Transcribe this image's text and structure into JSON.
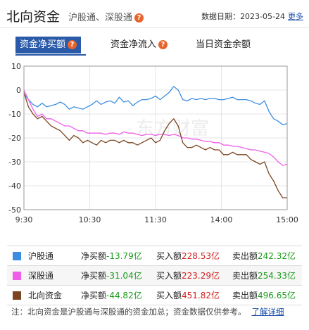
{
  "header": {
    "title": "北向资金",
    "subtitle": "沪股通、深股通",
    "date_label": "数据日期：",
    "date": "2023-05-24",
    "more": "更多"
  },
  "tabs": [
    {
      "label": "资金净买额",
      "active": true
    },
    {
      "label": "资金净流入",
      "active": false
    },
    {
      "label": "当日资金余额",
      "active": false
    }
  ],
  "chart_data": {
    "type": "line",
    "ylim": [
      -50,
      10
    ],
    "yticks": [
      "10",
      "0",
      "-10",
      "-20",
      "-30",
      "-40",
      "-50"
    ],
    "xticks": [
      "9:30",
      "10:30",
      "11:30",
      "14:00",
      "15:00"
    ],
    "grid": true,
    "series": [
      {
        "name": "沪股通",
        "color": "#3b8de0",
        "values": [
          -1.5,
          -4,
          -6,
          -7,
          -5.5,
          -7,
          -6.5,
          -6,
          -5,
          -6,
          -8,
          -7,
          -7.5,
          -8,
          -7,
          -6,
          -4.5,
          -6,
          -5,
          -4.5,
          -5.5,
          -3,
          -5,
          -4.5,
          -6.5,
          -5,
          -4,
          -4,
          -3.5,
          -2.5,
          -4,
          -2.5,
          -1,
          1.5,
          0,
          -4,
          -4.5,
          -3.5,
          -4,
          -3.5,
          -4,
          -3.5,
          -3.5,
          -4,
          -4,
          -3.5,
          -3,
          -4,
          -4,
          -4,
          -4.5,
          -5.5,
          -6,
          -4.5,
          -9,
          -12,
          -13,
          -14.5,
          -14
        ]
      },
      {
        "name": "深股通",
        "color": "#ee5ee8",
        "values": [
          0,
          -4,
          -8,
          -11,
          -10,
          -12,
          -12,
          -13,
          -14,
          -15,
          -15,
          -16,
          -17,
          -17,
          -18,
          -18,
          -18,
          -18,
          -18.5,
          -18,
          -18,
          -18.5,
          -17.5,
          -18,
          -18,
          -18.5,
          -19,
          -18.5,
          -18.5,
          -19,
          -18.5,
          -18.5,
          -19,
          -18.5,
          -19,
          -20,
          -20,
          -20.5,
          -20.5,
          -21,
          -21.5,
          -21.5,
          -22,
          -22,
          -23,
          -23,
          -23.5,
          -23.5,
          -24,
          -24.5,
          -25,
          -25,
          -25.5,
          -26,
          -26.5,
          -28,
          -30,
          -31.5,
          -31
        ]
      },
      {
        "name": "北向资金",
        "color": "#7a4520",
        "values": [
          -1,
          -7,
          -10,
          -12,
          -11,
          -13,
          -15,
          -16,
          -17,
          -19,
          -21,
          -19,
          -20,
          -22,
          -21,
          -22,
          -23,
          -21,
          -22,
          -21,
          -21,
          -22,
          -21,
          -22,
          -22,
          -23,
          -22,
          -21,
          -20,
          -22,
          -21,
          -17,
          -14,
          -12,
          -15,
          -22,
          -24,
          -24,
          -23,
          -24,
          -25,
          -24,
          -25,
          -25,
          -27,
          -27,
          -26,
          -27,
          -27,
          -27,
          -29,
          -30,
          -31,
          -30,
          -35,
          -38,
          -42,
          -45,
          -45
        ]
      }
    ]
  },
  "watermark": "东方财富",
  "legend": [
    {
      "name": "沪股通",
      "color": "#3b8de0",
      "net_label": "净买额",
      "net": "-13.79亿",
      "buy_label": "买入额",
      "buy": "228.53亿",
      "sell_label": "卖出额",
      "sell": "242.32亿"
    },
    {
      "name": "深股通",
      "color": "#ee5ee8",
      "net_label": "净买额",
      "net": "-31.04亿",
      "buy_label": "买入额",
      "buy": "223.29亿",
      "sell_label": "卖出额",
      "sell": "254.33亿"
    },
    {
      "name": "北向资金",
      "color": "#7a4520",
      "net_label": "净买额",
      "net": "-44.82亿",
      "buy_label": "买入额",
      "buy": "451.82亿",
      "sell_label": "卖出额",
      "sell": "496.65亿"
    }
  ],
  "note": {
    "text": "注：北向资金是沪股通与深股通的资金加总；资金数据仅供参考。",
    "link": "了解详细"
  }
}
